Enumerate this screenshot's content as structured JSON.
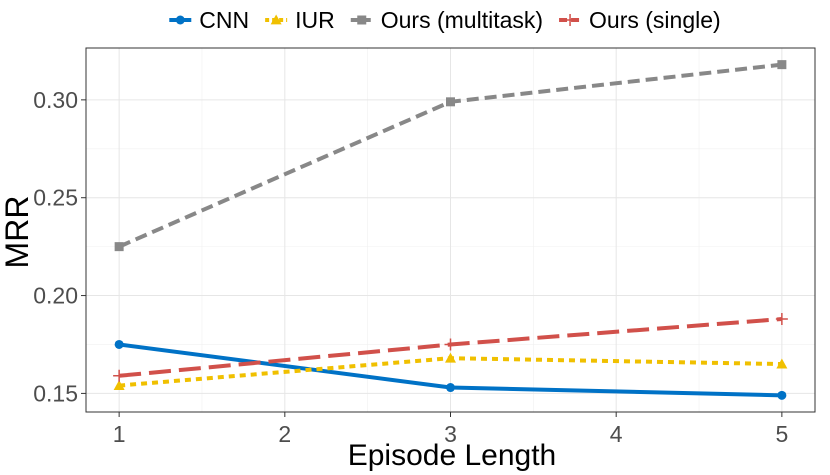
{
  "chart_data": {
    "type": "line",
    "title": "",
    "xlabel": "Episode Length",
    "ylabel": "MRR",
    "x": [
      1,
      2,
      3,
      4,
      5
    ],
    "xlim": [
      0.8,
      5.2
    ],
    "ylim": [
      0.1405,
      0.3265
    ],
    "xticks": [
      "1",
      "2",
      "3",
      "4",
      "5"
    ],
    "yticks": [
      "0.15",
      "0.20",
      "0.25",
      "0.30"
    ],
    "legend_position": "top",
    "grid": true,
    "series": [
      {
        "name": "CNN",
        "color": "#0072c6",
        "marker": "circle",
        "linestyle": "solid",
        "points": [
          [
            1,
            0.175
          ],
          [
            3,
            0.153
          ],
          [
            5,
            0.149
          ]
        ]
      },
      {
        "name": "IUR",
        "color": "#f0c000",
        "marker": "triangle",
        "linestyle": "dotted",
        "points": [
          [
            1,
            0.154
          ],
          [
            3,
            0.168
          ],
          [
            5,
            0.165
          ]
        ]
      },
      {
        "name": "Ours (multitask)",
        "color": "#888888",
        "marker": "square",
        "linestyle": "dashed",
        "points": [
          [
            1,
            0.225
          ],
          [
            3,
            0.299
          ],
          [
            5,
            0.318
          ]
        ]
      },
      {
        "name": "Ours (single)",
        "color": "#d1504a",
        "marker": "plus",
        "linestyle": "longdash",
        "points": [
          [
            1,
            0.159
          ],
          [
            3,
            0.175
          ],
          [
            5,
            0.188
          ]
        ]
      }
    ]
  }
}
